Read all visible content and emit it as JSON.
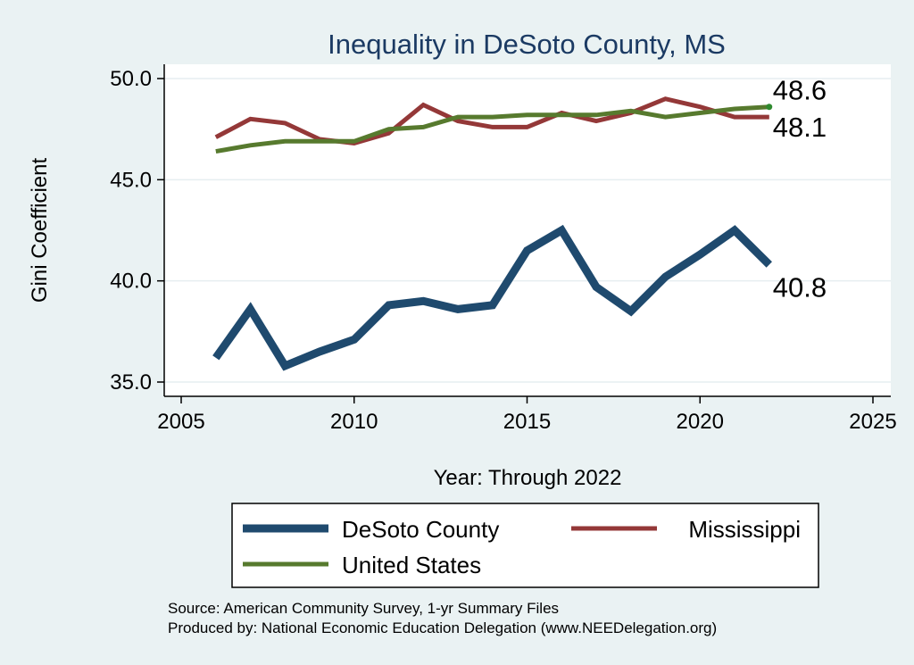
{
  "chart_data": {
    "type": "line",
    "title": "Inequality in DeSoto County, MS",
    "xlabel": "Year: Through 2022",
    "ylabel": "Gini Coefficient",
    "xlim": [
      2005,
      2025
    ],
    "ylim": [
      35.0,
      50.0
    ],
    "x_ticks": [
      "2005",
      "2010",
      "2015",
      "2020",
      "2025"
    ],
    "y_ticks": [
      "35.0",
      "40.0",
      "45.0",
      "50.0"
    ],
    "grid": true,
    "legend": "bottom",
    "x": [
      2006,
      2007,
      2008,
      2009,
      2010,
      2011,
      2012,
      2013,
      2014,
      2015,
      2016,
      2017,
      2018,
      2019,
      2020,
      2021,
      2022
    ],
    "series": [
      {
        "name": "DeSoto County",
        "color": "#1f4a6e",
        "values": [
          36.2,
          38.6,
          35.8,
          36.5,
          37.1,
          38.8,
          39.0,
          38.6,
          38.8,
          41.5,
          42.5,
          39.7,
          38.5,
          40.2,
          41.3,
          42.5,
          40.8
        ],
        "end_label": "40.8"
      },
      {
        "name": "Mississippi",
        "color": "#943838",
        "values": [
          47.1,
          48.0,
          47.8,
          47.0,
          46.8,
          47.3,
          48.7,
          47.9,
          47.6,
          47.6,
          48.3,
          47.9,
          48.3,
          49.0,
          48.6,
          48.1,
          48.1
        ],
        "end_label": "48.1"
      },
      {
        "name": "United States",
        "color": "#577a2e",
        "values": [
          46.4,
          46.7,
          46.9,
          46.9,
          46.9,
          47.5,
          47.6,
          48.1,
          48.1,
          48.2,
          48.2,
          48.2,
          48.4,
          48.1,
          48.3,
          48.5,
          48.6
        ],
        "end_label": "48.6"
      }
    ],
    "notes": [
      "Source: American Community Survey, 1-yr Summary Files",
      "Produced by: National Economic Education Delegation (www.NEEDelegation.org)"
    ]
  }
}
